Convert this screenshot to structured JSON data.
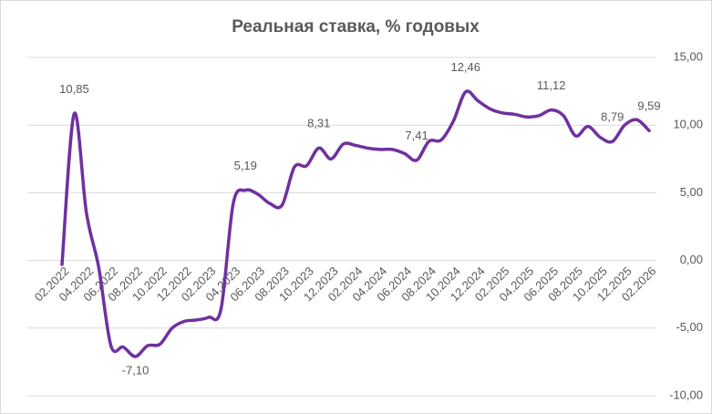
{
  "chart_data": {
    "type": "line",
    "title": "Реальная ставка, % годовых",
    "categories": [
      "02.2022",
      null,
      "04.2022",
      null,
      "06.2022",
      null,
      "08.2022",
      null,
      "10.2022",
      null,
      "12.2022",
      null,
      "02.2023",
      null,
      "04.2023",
      null,
      "06.2023",
      null,
      "08.2023",
      null,
      "10.2023",
      null,
      "12.2023",
      null,
      "02.2024",
      null,
      "04.2024",
      null,
      "06.2024",
      null,
      "08.2024",
      null,
      "10.2024",
      null,
      "12.2024",
      null,
      "02.2025",
      null,
      "04.2025",
      null,
      "06.2025",
      null,
      "08.2025",
      null,
      "10.2025",
      null,
      "12.2025",
      null,
      "02.2026"
    ],
    "series": [
      {
        "name": "Реальная ставка",
        "color": "#7030a0",
        "values": [
          -0.3,
          10.85,
          3.5,
          -0.5,
          -6.3,
          -6.4,
          -7.1,
          -6.3,
          -6.2,
          -5.0,
          -4.5,
          -4.4,
          -4.2,
          -3.6,
          4.2,
          5.19,
          4.9,
          4.2,
          4.1,
          6.9,
          7.0,
          8.31,
          7.5,
          8.6,
          8.5,
          8.3,
          8.2,
          8.2,
          7.9,
          7.41,
          8.8,
          8.9,
          10.3,
          12.46,
          11.8,
          11.2,
          10.9,
          10.8,
          10.6,
          10.7,
          11.12,
          10.7,
          9.2,
          9.9,
          9.1,
          8.79,
          10.0,
          10.4,
          9.59
        ],
        "value_labels": [
          null,
          "10,85",
          null,
          null,
          null,
          null,
          "-7,10",
          null,
          null,
          null,
          null,
          null,
          null,
          null,
          null,
          "5,19",
          null,
          null,
          null,
          null,
          null,
          "8,31",
          null,
          null,
          null,
          null,
          null,
          null,
          null,
          "7,41",
          null,
          null,
          null,
          "12,46",
          null,
          null,
          null,
          null,
          null,
          null,
          "11,12",
          null,
          null,
          null,
          null,
          "8,79",
          null,
          null,
          "9,59"
        ]
      }
    ],
    "ylim": [
      -10,
      15
    ],
    "yticks": [
      {
        "value": -10,
        "label": "-10,00"
      },
      {
        "value": -5,
        "label": "-5,00"
      },
      {
        "value": 0,
        "label": "0,00"
      },
      {
        "value": 5,
        "label": "5,00"
      },
      {
        "value": 10,
        "label": "10,00"
      },
      {
        "value": 15,
        "label": "15,00"
      }
    ],
    "grid": true
  }
}
